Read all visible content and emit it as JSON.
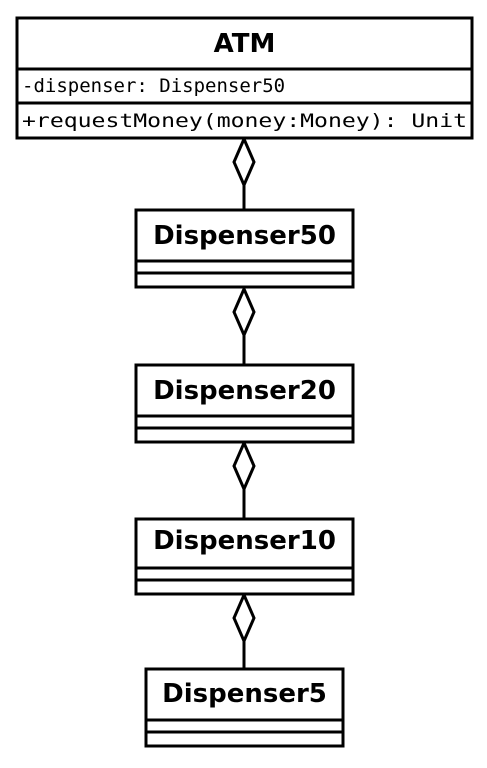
{
  "diagram": {
    "type": "uml-class-diagram",
    "line_color": "#000000",
    "background": "#ffffff",
    "classes": [
      {
        "name": "ATM",
        "attributes": [
          "-dispenser: Dispenser50"
        ],
        "operations": [
          "+requestMoney(money:Money): Unit"
        ]
      },
      {
        "name": "Dispenser50",
        "attributes": [],
        "operations": []
      },
      {
        "name": "Dispenser20",
        "attributes": [],
        "operations": []
      },
      {
        "name": "Dispenser10",
        "attributes": [],
        "operations": []
      },
      {
        "name": "Dispenser5",
        "attributes": [],
        "operations": []
      }
    ],
    "relationships": [
      {
        "kind": "aggregation",
        "whole": "ATM",
        "part": "Dispenser50"
      },
      {
        "kind": "aggregation",
        "whole": "Dispenser50",
        "part": "Dispenser20"
      },
      {
        "kind": "aggregation",
        "whole": "Dispenser20",
        "part": "Dispenser10"
      },
      {
        "kind": "aggregation",
        "whole": "Dispenser10",
        "part": "Dispenser5"
      }
    ]
  }
}
